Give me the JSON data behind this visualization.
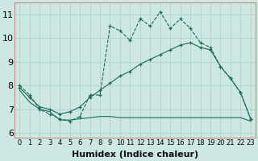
{
  "xlabel": "Humidex (Indice chaleur)",
  "background_color": "#cce8e0",
  "line_color": "#1a6b5a",
  "xlim": [
    -0.5,
    23.5
  ],
  "ylim": [
    5.8,
    11.5
  ],
  "xticks": [
    0,
    1,
    2,
    3,
    4,
    5,
    6,
    7,
    8,
    9,
    10,
    11,
    12,
    13,
    14,
    15,
    16,
    17,
    18,
    19,
    20,
    21,
    22,
    23
  ],
  "yticks": [
    6,
    7,
    8,
    9,
    10,
    11
  ],
  "line1_x": [
    0,
    1,
    2,
    3,
    4,
    5,
    6,
    7,
    8,
    9,
    10,
    11,
    12,
    13,
    14,
    15,
    16,
    17,
    18,
    19,
    20,
    21,
    22,
    23
  ],
  "line1_y": [
    8.0,
    7.6,
    7.0,
    6.8,
    6.6,
    6.5,
    6.7,
    7.6,
    7.6,
    10.5,
    10.3,
    9.9,
    10.8,
    10.5,
    11.1,
    10.4,
    10.8,
    10.4,
    9.8,
    9.6,
    8.8,
    8.3,
    7.7,
    6.6
  ],
  "line2_x": [
    0,
    1,
    2,
    3,
    4,
    5,
    6,
    7,
    8,
    9,
    10,
    11,
    12,
    13,
    14,
    15,
    16,
    17,
    18,
    19,
    20,
    21,
    22,
    23
  ],
  "line2_y": [
    7.9,
    7.5,
    7.1,
    7.0,
    6.8,
    6.9,
    7.1,
    7.5,
    7.8,
    8.1,
    8.4,
    8.6,
    8.9,
    9.1,
    9.3,
    9.5,
    9.7,
    9.8,
    9.6,
    9.5,
    8.8,
    8.3,
    7.7,
    6.6
  ],
  "line3_x": [
    0,
    1,
    2,
    3,
    4,
    5,
    6,
    7,
    8,
    9,
    10,
    11,
    12,
    13,
    14,
    15,
    16,
    17,
    18,
    19,
    20,
    21,
    22,
    23
  ],
  "line3_y": [
    7.8,
    7.3,
    7.0,
    6.9,
    6.55,
    6.55,
    6.6,
    6.65,
    6.7,
    6.7,
    6.65,
    6.65,
    6.65,
    6.65,
    6.65,
    6.65,
    6.65,
    6.65,
    6.65,
    6.65,
    6.65,
    6.65,
    6.65,
    6.5
  ],
  "grid_color": "#afd4cc",
  "font_size_xlabel": 8,
  "font_size_yticks": 8,
  "font_size_xticks": 6
}
